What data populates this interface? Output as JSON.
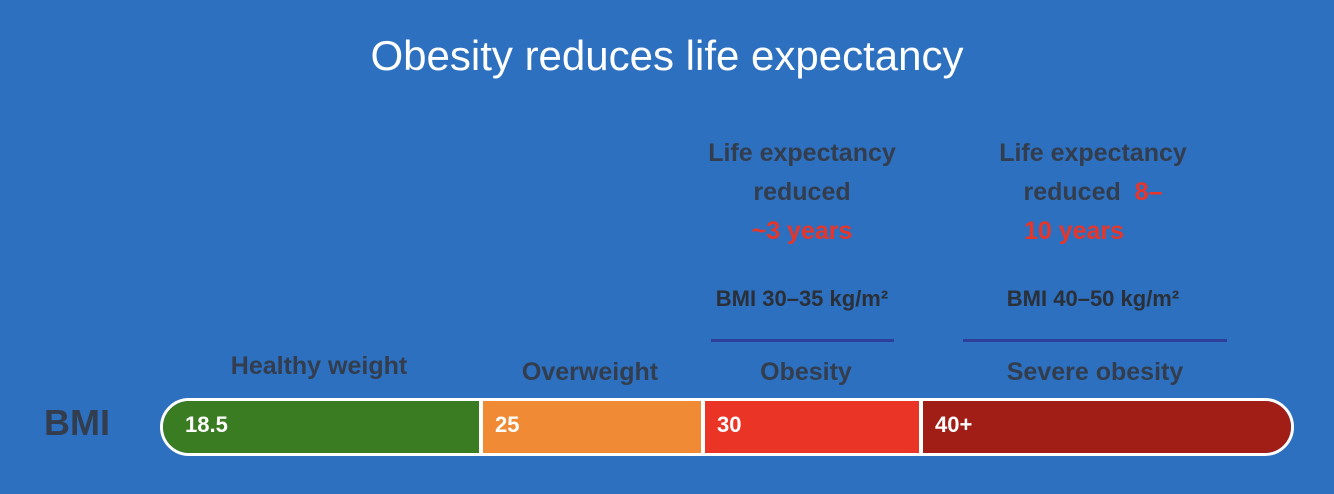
{
  "title": "Obesity reduces life expectancy",
  "obesity_note": {
    "line1": "Life expectancy",
    "line2": "reduced",
    "years": "~3 years",
    "bmi_range": "BMI 30–35 kg/m²"
  },
  "severe_note": {
    "line1": "Life expectancy",
    "line2": "reduced",
    "years_part1": "8–",
    "years_part2": "10 years",
    "bmi_range": "BMI 40–50 kg/m²"
  },
  "categories": [
    {
      "label": "Healthy weight",
      "threshold": "18.5",
      "color": "#397c21"
    },
    {
      "label": "Overweight",
      "threshold": "25",
      "color": "#f08a34"
    },
    {
      "label": "Obesity",
      "threshold": "30",
      "color": "#ea3526"
    },
    {
      "label": "Severe obesity",
      "threshold": "40+",
      "color": "#a11e17"
    }
  ],
  "bmi_label": "BMI"
}
